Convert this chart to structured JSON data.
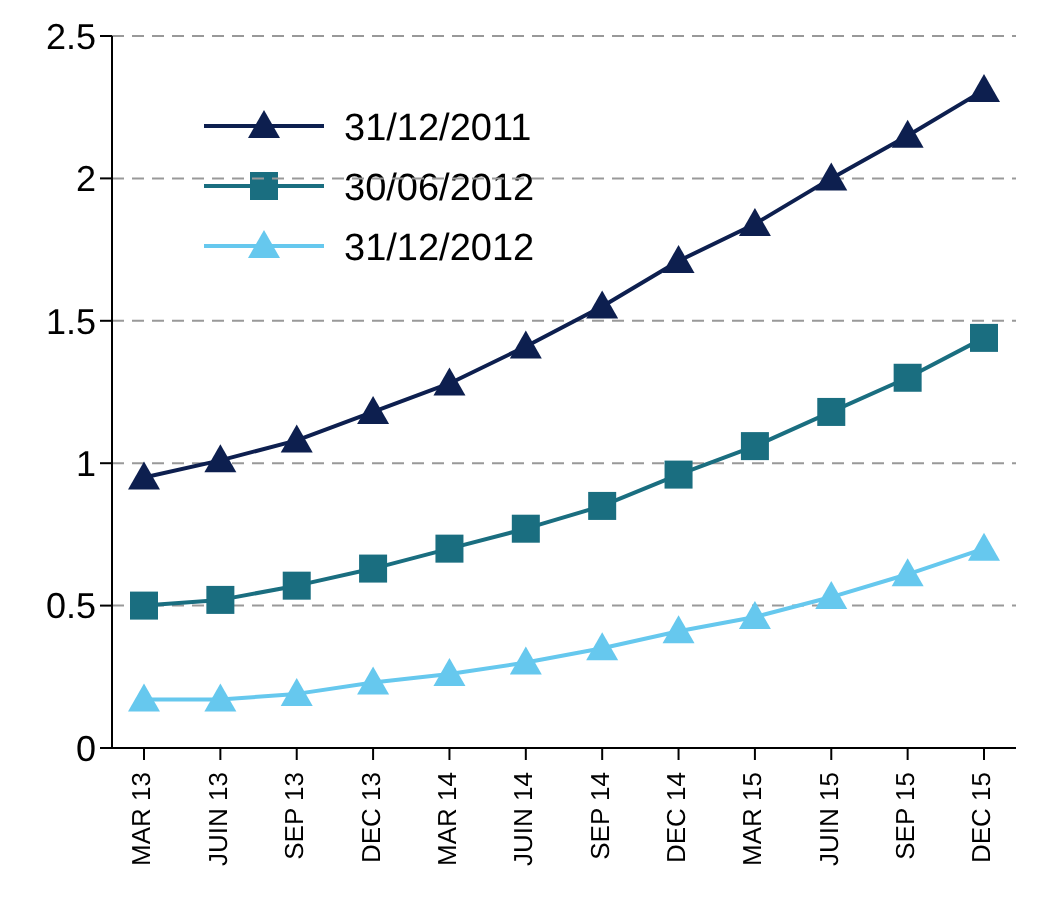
{
  "chart_data": {
    "type": "line",
    "categories": [
      "MAR 13",
      "JUIN 13",
      "SEP 13",
      "DEC 13",
      "MAR 14",
      "JUIN 14",
      "SEP 14",
      "DEC 14",
      "MAR 15",
      "JUIN 15",
      "SEP 15",
      "DEC 15"
    ],
    "series": [
      {
        "name": "31/12/2011",
        "color": "#0d1f4f",
        "marker": "triangle",
        "values": [
          0.95,
          1.01,
          1.08,
          1.18,
          1.28,
          1.41,
          1.55,
          1.71,
          1.84,
          2.0,
          2.15,
          2.31
        ]
      },
      {
        "name": "30/06/2012",
        "color": "#1a6e80",
        "marker": "square",
        "values": [
          0.5,
          0.52,
          0.57,
          0.63,
          0.7,
          0.77,
          0.85,
          0.96,
          1.06,
          1.18,
          1.3,
          1.44
        ]
      },
      {
        "name": "31/12/2012",
        "color": "#66c8ee",
        "marker": "triangle",
        "values": [
          0.17,
          0.17,
          0.19,
          0.23,
          0.26,
          0.3,
          0.35,
          0.41,
          0.46,
          0.53,
          0.61,
          0.7
        ]
      }
    ],
    "ylim": [
      0,
      2.5
    ],
    "yticks": [
      0,
      0.5,
      1,
      1.5,
      2,
      2.5
    ],
    "grid": "y",
    "legend": "top left"
  }
}
